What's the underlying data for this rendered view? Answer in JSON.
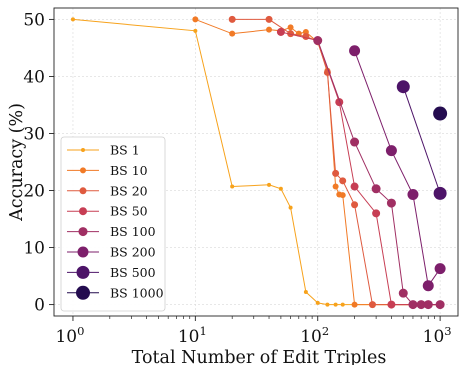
{
  "chart_data": {
    "type": "line",
    "xlabel": "Total Number of Edit Triples",
    "ylabel": "Accuracy (%)",
    "x_scale": "log",
    "xlim": [
      0.7,
      1400
    ],
    "ylim": [
      -2,
      52
    ],
    "grid": true,
    "legend_position": "bottom-left",
    "x_ticks": [
      {
        "value": 1,
        "base": "10",
        "exp": "0"
      },
      {
        "value": 10,
        "base": "10",
        "exp": "1"
      },
      {
        "value": 100,
        "base": "10",
        "exp": "2"
      },
      {
        "value": 1000,
        "base": "10",
        "exp": "3"
      }
    ],
    "y_ticks": [
      "0",
      "10",
      "20",
      "30",
      "40",
      "50"
    ],
    "series": [
      {
        "name": "BS 1",
        "color": "#f7a21b",
        "marker_size": 2,
        "x": [
          1,
          10,
          20,
          40,
          50,
          60,
          80,
          100,
          120,
          140,
          160,
          200,
          1000
        ],
        "y": [
          50,
          48,
          20.7,
          21,
          20.3,
          17,
          2.2,
          0.3,
          0,
          0,
          0,
          0,
          0
        ]
      },
      {
        "name": "BS 10",
        "color": "#f17a26",
        "marker_size": 3,
        "x": [
          10,
          20,
          40,
          50,
          60,
          70,
          80,
          100,
          120,
          140,
          150,
          160,
          200,
          1000
        ],
        "y": [
          50,
          47.5,
          48.2,
          48,
          48.6,
          47.5,
          47.8,
          46,
          41,
          20.7,
          19.3,
          19.2,
          0,
          0
        ]
      },
      {
        "name": "BS 20",
        "color": "#df5a3f",
        "marker_size": 3.5,
        "x": [
          20,
          40,
          60,
          80,
          100,
          120,
          140,
          160,
          200,
          280,
          1000
        ],
        "y": [
          50,
          50,
          47.5,
          47,
          46.2,
          40.7,
          23,
          21.7,
          17.5,
          0,
          0
        ]
      },
      {
        "name": "BS 50",
        "color": "#c73e54",
        "marker_size": 4,
        "x": [
          50,
          100,
          150,
          200,
          300,
          400,
          1000
        ],
        "y": [
          47.8,
          46.3,
          35.5,
          20.7,
          16,
          0,
          0
        ]
      },
      {
        "name": "BS 100",
        "color": "#a02f63",
        "marker_size": 4.5,
        "x": [
          100,
          200,
          300,
          400,
          500,
          600,
          700,
          800,
          1000
        ],
        "y": [
          46.3,
          28.5,
          20.3,
          17.8,
          2,
          0,
          0,
          0,
          0
        ]
      },
      {
        "name": "BS 200",
        "color": "#7d1f6b",
        "marker_size": 5.5,
        "x": [
          200,
          400,
          600,
          800,
          1000
        ],
        "y": [
          44.5,
          27,
          19.3,
          3.3,
          6.3
        ]
      },
      {
        "name": "BS 500",
        "color": "#4d1468",
        "marker_size": 6.5,
        "x": [
          500,
          1000
        ],
        "y": [
          38.2,
          19.5
        ]
      },
      {
        "name": "BS 1000",
        "color": "#240c4f",
        "marker_size": 7,
        "x": [
          1000
        ],
        "y": [
          33.5
        ]
      }
    ]
  }
}
